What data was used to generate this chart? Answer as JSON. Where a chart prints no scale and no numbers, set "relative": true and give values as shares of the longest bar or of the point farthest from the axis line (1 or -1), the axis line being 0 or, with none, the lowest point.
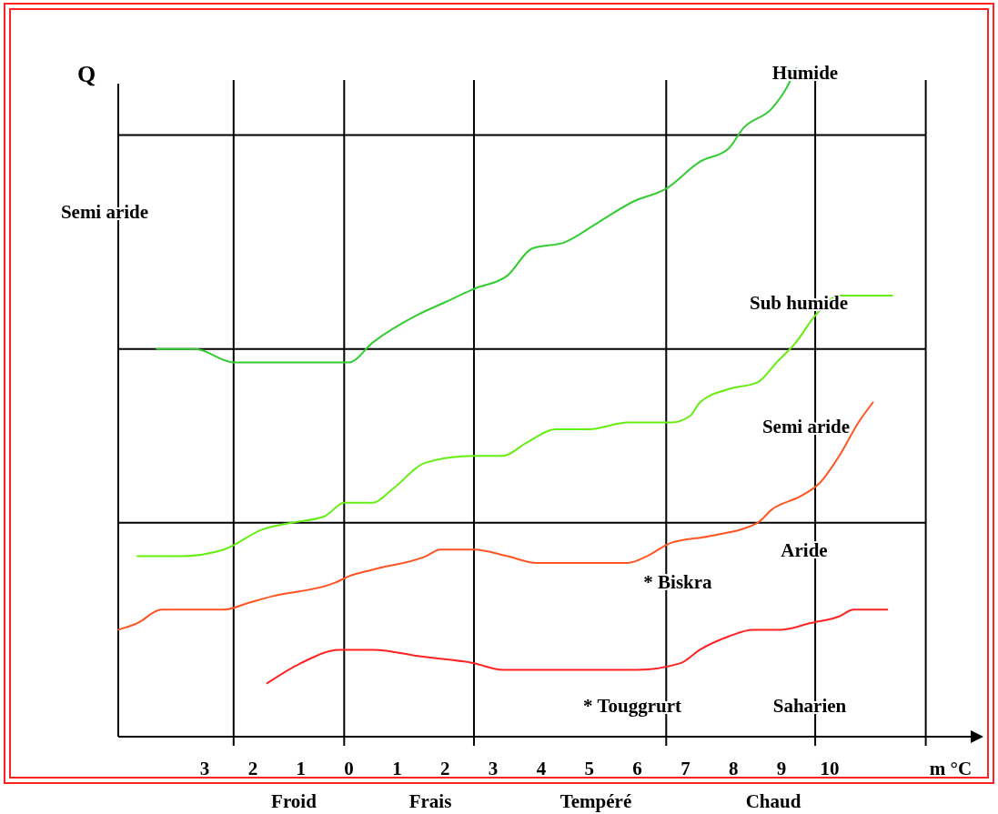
{
  "chart_data": {
    "type": "line",
    "relative": true,
    "ylabel": "Q",
    "xlabel": "m °C",
    "xlim": [
      -4.8,
      13.2
    ],
    "xticks": [
      {
        "value": -3,
        "label": "3"
      },
      {
        "value": -2,
        "label": "2"
      },
      {
        "value": -1,
        "label": "1"
      },
      0,
      1,
      2,
      3,
      4,
      5,
      6,
      7,
      8,
      9,
      10
    ],
    "grid": false,
    "marker": "none",
    "line_style": "solid",
    "series": [
      {
        "color": "#33cc33",
        "x": [
          -4.0,
          -3.2,
          -2.4,
          -1.9,
          -0.4,
          0.0,
          0.5,
          1.4,
          2.0,
          2.6,
          3.3,
          3.8,
          4.5,
          5.2,
          5.9,
          6.6,
          7.3,
          7.9,
          8.2,
          8.8,
          9.1,
          9.3
        ],
        "values": [
          0.58,
          0.58,
          0.56,
          0.56,
          0.56,
          0.56,
          0.59,
          0.63,
          0.65,
          0.67,
          0.69,
          0.73,
          0.74,
          0.77,
          0.8,
          0.82,
          0.86,
          0.88,
          0.91,
          0.94,
          0.97,
          1.0
        ]
      },
      {
        "color": "#66ee11",
        "x": [
          -4.4,
          -3.5,
          -2.6,
          -1.8,
          -1.2,
          -0.5,
          -0.1,
          0.5,
          0.9,
          1.6,
          2.6,
          3.2,
          3.7,
          4.3,
          5.0,
          5.8,
          6.7,
          7.1,
          7.3,
          7.9,
          8.5,
          8.9,
          9.3,
          9.7,
          10.2,
          11.3
        ],
        "values": [
          0.27,
          0.27,
          0.28,
          0.31,
          0.32,
          0.33,
          0.35,
          0.35,
          0.37,
          0.41,
          0.42,
          0.42,
          0.44,
          0.46,
          0.46,
          0.47,
          0.47,
          0.48,
          0.5,
          0.52,
          0.53,
          0.56,
          0.59,
          0.63,
          0.66,
          0.66
        ]
      },
      {
        "color": "#ff5522",
        "x": [
          -4.8,
          -4.4,
          -3.9,
          -2.6,
          -2.1,
          -1.6,
          -0.3,
          0.0,
          0.5,
          1.6,
          1.9,
          2.6,
          3.3,
          3.9,
          5.8,
          6.2,
          6.7,
          7.5,
          8.5,
          8.8,
          9.4,
          9.8,
          10.2,
          10.6,
          10.9
        ],
        "values": [
          0.16,
          0.17,
          0.19,
          0.19,
          0.2,
          0.21,
          0.23,
          0.24,
          0.25,
          0.27,
          0.28,
          0.28,
          0.27,
          0.26,
          0.26,
          0.27,
          0.29,
          0.3,
          0.32,
          0.34,
          0.36,
          0.38,
          0.42,
          0.47,
          0.5
        ]
      },
      {
        "color": "#ff2222",
        "x": [
          -1.7,
          -1.0,
          -0.2,
          0.5,
          1.5,
          2.6,
          3.2,
          4.1,
          5.0,
          6.0,
          6.9,
          7.3,
          7.9,
          8.4,
          9.0,
          9.6,
          10.2,
          10.5,
          11.2
        ],
        "values": [
          0.08,
          0.11,
          0.13,
          0.13,
          0.12,
          0.11,
          0.1,
          0.1,
          0.1,
          0.1,
          0.11,
          0.13,
          0.15,
          0.16,
          0.16,
          0.17,
          0.18,
          0.19,
          0.19
        ]
      }
    ],
    "ref_lines": [
      {
        "axis": "y",
        "value": 0.9,
        "color": "#000000"
      },
      {
        "axis": "y",
        "value": 0.58,
        "color": "#000000"
      },
      {
        "axis": "y",
        "value": 0.32,
        "color": "#000000"
      },
      {
        "axis": "x",
        "value": -2.4,
        "color": "#000000"
      },
      {
        "axis": "x",
        "value": -0.1,
        "color": "#000000"
      },
      {
        "axis": "x",
        "value": 2.6,
        "color": "#000000"
      },
      {
        "axis": "x",
        "value": 6.6,
        "color": "#000000"
      },
      {
        "axis": "x",
        "value": 9.7,
        "color": "#000000"
      },
      {
        "axis": "x",
        "value": 12.0,
        "color": "#000000"
      }
    ],
    "annotations": [
      "Humide",
      "Semi aride",
      "Sub humide",
      "Semi aride",
      "Aride",
      "* Biskra",
      "* Touggrurt",
      "Saharien",
      "Froid",
      "Frais",
      "Tempéré",
      "Chaud"
    ]
  }
}
